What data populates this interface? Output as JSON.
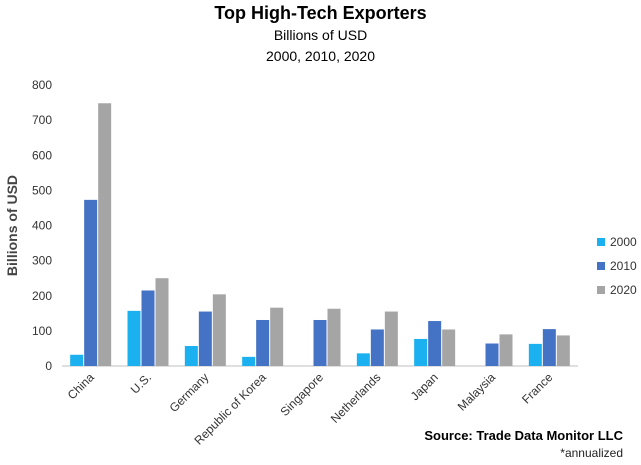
{
  "chart_data": {
    "type": "bar",
    "title": "Top High-Tech Exporters",
    "subtitle": "Billions of USD",
    "subtitle2": "2000, 2010, 2020",
    "ylabel": "Billions of USD",
    "xlabel": "",
    "ylim": [
      0,
      800
    ],
    "yticks": [
      0,
      100,
      200,
      300,
      400,
      500,
      600,
      700,
      800
    ],
    "grid": false,
    "legend_position": "right",
    "categories": [
      "China",
      "U.S.",
      "Germany",
      "Republic of Korea",
      "Singapore",
      "Netherlands",
      "Japan",
      "Malaysia",
      "France"
    ],
    "series": [
      {
        "name": "2000",
        "color": "#1bb1f0",
        "values": [
          32,
          157,
          57,
          26,
          null,
          36,
          77,
          null,
          63
        ]
      },
      {
        "name": "2010",
        "color": "#4472c4",
        "values": [
          473,
          215,
          155,
          131,
          131,
          104,
          128,
          64,
          105
        ]
      },
      {
        "name": "2020",
        "color": "#a5a5a5",
        "values": [
          748,
          250,
          204,
          166,
          163,
          155,
          104,
          90,
          87
        ]
      }
    ],
    "source": "Source: Trade Data Monitor LLC",
    "footnote": "*annualized"
  }
}
